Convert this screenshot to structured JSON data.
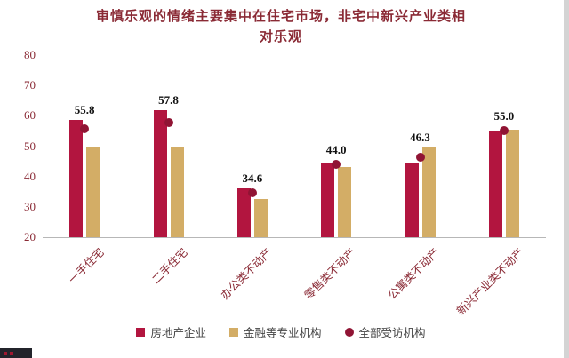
{
  "chart_data": {
    "type": "bar",
    "title_line1": "审慎乐观的情绪主要集中在住宅市场，非宅中新兴产业类相",
    "title_line2": "对乐观",
    "categories": [
      "一手住宅",
      "二手住宅",
      "办公类不动产",
      "零售类不动产",
      "公寓类不动产",
      "新兴产业类不动产"
    ],
    "series": [
      {
        "name": "房地产企业",
        "type": "bar",
        "color": "#b2153f",
        "values": [
          58.5,
          62.0,
          36.0,
          44.3,
          44.5,
          55.0
        ]
      },
      {
        "name": "金融等专业机构",
        "type": "bar",
        "color": "#d3ad66",
        "values": [
          50.0,
          50.0,
          32.6,
          43.0,
          49.5,
          55.5
        ]
      },
      {
        "name": "全部受访机构",
        "type": "dot",
        "color": "#901434",
        "values": [
          55.8,
          57.8,
          34.6,
          44.0,
          46.3,
          55.0
        ]
      }
    ],
    "point_labels": [
      "55.8",
      "57.8",
      "34.6",
      "44.0",
      "46.3",
      "55.0"
    ],
    "ylim": [
      20,
      80
    ],
    "yticks": [
      80,
      70,
      60,
      50,
      40,
      30,
      20
    ],
    "refline": 50,
    "legend_position": "bottom",
    "grid": "off"
  }
}
